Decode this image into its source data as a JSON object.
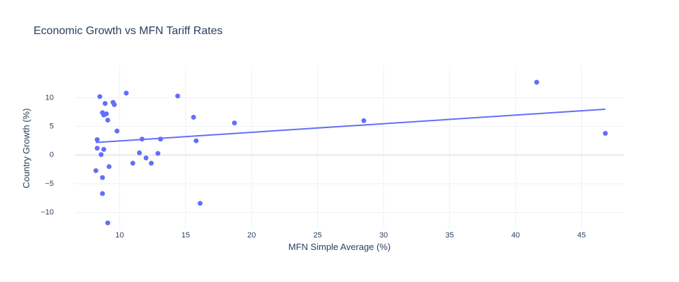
{
  "chart_data": {
    "type": "scatter",
    "title": "Economic Growth vs MFN Tariff Rates",
    "xlabel": "MFN Simple Average (%)",
    "ylabel": "Country Growth (%)",
    "xlim": [
      6.6,
      48.2
    ],
    "ylim": [
      -13.0,
      15.5
    ],
    "xticks": [
      10,
      15,
      20,
      25,
      30,
      35,
      40,
      45
    ],
    "yticks": [
      -10,
      -5,
      0,
      5,
      10
    ],
    "grid": true,
    "legend": "none",
    "marker_color": "#636efa",
    "points": [
      {
        "x": 8.5,
        "y": 10.2
      },
      {
        "x": 10.5,
        "y": 10.8
      },
      {
        "x": 14.4,
        "y": 10.3
      },
      {
        "x": 9.5,
        "y": 9.2
      },
      {
        "x": 9.6,
        "y": 8.8
      },
      {
        "x": 8.9,
        "y": 9.0
      },
      {
        "x": 8.7,
        "y": 7.4
      },
      {
        "x": 8.8,
        "y": 7.0
      },
      {
        "x": 9.0,
        "y": 7.2
      },
      {
        "x": 9.1,
        "y": 6.1
      },
      {
        "x": 15.6,
        "y": 6.6
      },
      {
        "x": 18.7,
        "y": 5.6
      },
      {
        "x": 28.5,
        "y": 6.0
      },
      {
        "x": 41.6,
        "y": 12.7
      },
      {
        "x": 46.8,
        "y": 3.8
      },
      {
        "x": 9.8,
        "y": 4.2
      },
      {
        "x": 8.3,
        "y": 2.7
      },
      {
        "x": 11.7,
        "y": 2.8
      },
      {
        "x": 13.1,
        "y": 2.8
      },
      {
        "x": 15.8,
        "y": 2.5
      },
      {
        "x": 8.3,
        "y": 1.2
      },
      {
        "x": 8.8,
        "y": 1.0
      },
      {
        "x": 8.6,
        "y": 0.1
      },
      {
        "x": 11.5,
        "y": 0.4
      },
      {
        "x": 12.9,
        "y": 0.3
      },
      {
        "x": 12.0,
        "y": -0.5
      },
      {
        "x": 11.0,
        "y": -1.4
      },
      {
        "x": 12.4,
        "y": -1.4
      },
      {
        "x": 9.2,
        "y": -2.0
      },
      {
        "x": 8.2,
        "y": -2.7
      },
      {
        "x": 8.7,
        "y": -3.9
      },
      {
        "x": 8.7,
        "y": -6.7
      },
      {
        "x": 16.1,
        "y": -8.4
      },
      {
        "x": 9.1,
        "y": -11.8
      }
    ],
    "trendline": {
      "x": [
        8.2,
        46.8
      ],
      "y": [
        2.2,
        8.0
      ]
    }
  }
}
